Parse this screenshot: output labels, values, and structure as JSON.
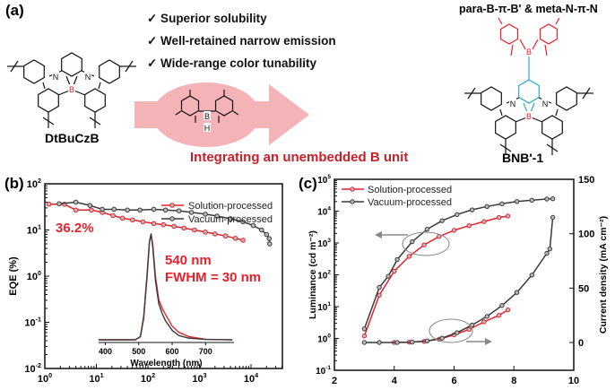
{
  "panel_a": {
    "label": "(a)",
    "features": [
      "✓ Superior solubility",
      "✓ Well-retained narrow emission",
      "✓ Wide-range color tunability"
    ],
    "left_molecule": "DtBuCzB",
    "right_molecule": "BNB'-1",
    "right_title": "para-B-π-B' & meta-N-π-N",
    "arrow_caption": "Integrating an unembedded B unit",
    "atoms": {
      "N": "N",
      "B": "B",
      "H": "H"
    },
    "colors": {
      "red": "#e8212b",
      "cyan": "#2ea8d8",
      "pink_arrow": "#f4b3b6",
      "caption": "#c8202a"
    }
  },
  "chart_data": [
    {
      "panel": "(b)",
      "type": "line",
      "xscale": "log",
      "yscale": "log",
      "xlabel": "",
      "ylabel": "EQE (%)",
      "xlim": [
        1,
        40000
      ],
      "ylim": [
        0.01,
        100
      ],
      "xticks": [
        "10^0",
        "10^1",
        "10^2",
        "10^3",
        "10^4"
      ],
      "yticks": [
        "10^-2",
        "10^-1",
        "10^0",
        "10^1",
        "10^2"
      ],
      "legend": "top-right",
      "annotations": [
        "36.2%",
        "540 nm",
        "FWHM = 30 nm"
      ],
      "series": [
        {
          "name": "Solution-processed",
          "color": "#e8212b",
          "x": [
            1.2,
            2.4,
            4,
            8,
            13,
            21,
            32,
            50,
            80,
            130,
            200,
            320,
            500,
            800,
            1300,
            2000,
            3200,
            5000,
            7000
          ],
          "y": [
            36.2,
            36,
            27,
            27,
            24,
            20.5,
            18,
            16.5,
            15,
            13.8,
            13,
            12,
            11,
            10,
            9,
            8.2,
            7.4,
            6.6,
            6
          ]
        },
        {
          "name": "Vacuum-processed",
          "color": "#3a3a3a",
          "x": [
            1.9,
            4,
            7.5,
            13,
            22,
            40,
            70,
            130,
            220,
            400,
            700,
            1300,
            2200,
            4000,
            7000,
            11000,
            16000,
            20000,
            22500,
            23000
          ],
          "y": [
            37,
            40,
            34,
            28,
            28,
            27,
            27,
            28,
            27,
            26,
            24,
            22,
            20,
            17.5,
            15,
            12.5,
            10,
            8,
            6.5,
            5
          ]
        }
      ],
      "inset": {
        "type": "line",
        "xlabel": "Wavelength (nm)",
        "xlim": [
          380,
          785
        ],
        "xticks": [
          400,
          500,
          600,
          700
        ],
        "series": [
          {
            "name": "Solution-processed",
            "color": "#e8212b",
            "x": [
              380,
              490,
              505,
              515,
              525,
              532,
              537,
              542,
              550,
              560,
              570,
              580,
              600,
              620,
              650,
              700,
              780
            ],
            "y": [
              0,
              0,
              0.03,
              0.2,
              0.6,
              0.92,
              1.0,
              0.9,
              0.6,
              0.38,
              0.3,
              0.24,
              0.13,
              0.07,
              0.03,
              0.005,
              0
            ]
          },
          {
            "name": "Vacuum-processed",
            "color": "#3a3a3a",
            "x": [
              380,
              490,
              505,
              515,
              525,
              532,
              537,
              542,
              550,
              560,
              570,
              580,
              600,
              620,
              650,
              700,
              780
            ],
            "y": [
              0,
              0,
              0.03,
              0.22,
              0.62,
              0.93,
              1.0,
              0.88,
              0.56,
              0.34,
              0.25,
              0.18,
              0.09,
              0.04,
              0.015,
              0.003,
              0
            ]
          }
        ]
      }
    },
    {
      "panel": "(c)",
      "type": "line",
      "xscale": "linear",
      "yscale": "log",
      "xlabel": "",
      "ylabel": "Luminance (cd m⁻²)",
      "y2label": "Current density (mA cm⁻²)",
      "xlim": [
        2,
        10
      ],
      "ylim": [
        0.1,
        100000
      ],
      "y2lim": [
        -25,
        150
      ],
      "xticks": [
        "2",
        "4",
        "6",
        "8",
        "10"
      ],
      "yticks": [
        "10^-1",
        "10^0",
        "10^1",
        "10^2",
        "10^3",
        "10^4",
        "10^5"
      ],
      "y2ticks": [
        "0",
        "50",
        "100",
        "150"
      ],
      "legend": "top-left",
      "series": [
        {
          "name": "Solution-processed",
          "color": "#e8212b",
          "axis": "luminance",
          "x": [
            3,
            3.5,
            4,
            4.5,
            5,
            5.5,
            6,
            6.5,
            7,
            7.5,
            7.8
          ],
          "y": [
            1.2,
            23,
            130,
            380,
            870,
            1600,
            2500,
            3500,
            4700,
            6300,
            7000
          ]
        },
        {
          "name": "Vacuum-processed",
          "color": "#3a3a3a",
          "axis": "luminance",
          "x": [
            3,
            3.5,
            3.8,
            4.1,
            4.6,
            5.1,
            5.6,
            6.1,
            6.6,
            7.1,
            7.6,
            8.1,
            8.6,
            9.1,
            9.3
          ],
          "y": [
            2,
            40,
            90,
            300,
            1100,
            2700,
            5000,
            7800,
            11000,
            14000,
            17000,
            20000,
            22000,
            24000,
            24500
          ]
        },
        {
          "name": "Solution-processed",
          "color": "#e8212b",
          "axis": "current_density",
          "x": [
            4,
            4.5,
            5,
            5.5,
            6,
            6.5,
            7,
            7.5,
            7.8
          ],
          "y": [
            0,
            0.3,
            1,
            3,
            7,
            12,
            19,
            25,
            30
          ]
        },
        {
          "name": "Vacuum-processed",
          "color": "#3a3a3a",
          "axis": "current_density",
          "x": [
            3,
            3.5,
            4.1,
            4.6,
            5.1,
            5.6,
            6.1,
            6.6,
            7.1,
            7.6,
            8.1,
            8.6,
            9.1,
            9.2,
            9.3
          ],
          "y": [
            0,
            0,
            0,
            0.3,
            1.5,
            4,
            9,
            16,
            24,
            34,
            46,
            62,
            82,
            86,
            115
          ]
        }
      ]
    }
  ]
}
